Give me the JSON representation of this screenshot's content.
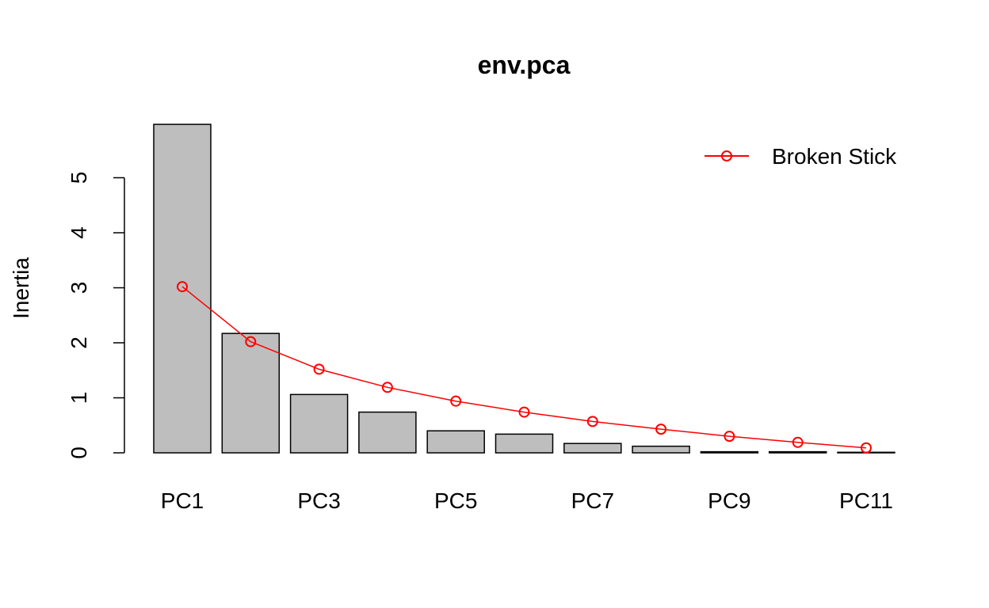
{
  "chart_data": {
    "type": "bar",
    "title": "env.pca",
    "xlabel": "",
    "ylabel": "Inertia",
    "ylim": [
      0,
      6
    ],
    "yticks": [
      0,
      1,
      2,
      3,
      4,
      5
    ],
    "categories": [
      "PC1",
      "PC2",
      "PC3",
      "PC4",
      "PC5",
      "PC6",
      "PC7",
      "PC8",
      "PC9",
      "PC10",
      "PC11"
    ],
    "x_tick_labels": [
      "PC1",
      "",
      "PC3",
      "",
      "PC5",
      "",
      "PC7",
      "",
      "PC9",
      "",
      "PC11"
    ],
    "values": [
      5.97,
      2.17,
      1.06,
      0.74,
      0.4,
      0.34,
      0.17,
      0.12,
      0.02,
      0.02,
      0.01
    ],
    "overlay": {
      "type": "line",
      "name": "Broken Stick",
      "values": [
        3.02,
        2.02,
        1.52,
        1.19,
        0.94,
        0.74,
        0.57,
        0.43,
        0.3,
        0.19,
        0.09
      ]
    },
    "legend": {
      "position": "top-right",
      "entries": [
        "Broken Stick"
      ]
    },
    "grid": false,
    "colors": {
      "bar_fill": "#bebebe",
      "bar_stroke": "#000000",
      "line": "#ff0000",
      "axis": "#000000"
    }
  }
}
